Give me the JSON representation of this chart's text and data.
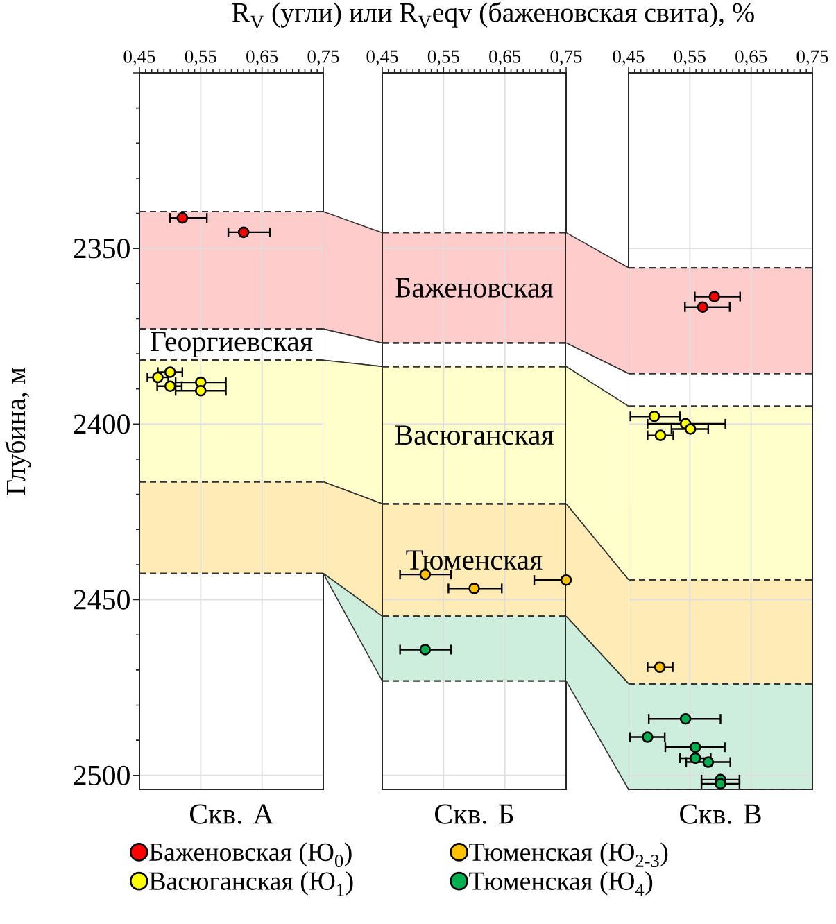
{
  "chart_data": [
    {
      "type": "scatter",
      "title": "R$_{V}$ (угли) или R$_{V}$eqv (баженовская свита), %",
      "xlabel": "Скв. А",
      "ylabel": "Глубина, м",
      "xlim": [
        0.45,
        0.75
      ],
      "xticks": [
        {
          "value": 0.45,
          "label": "0,45"
        },
        {
          "value": 0.55,
          "label": "0,55"
        },
        {
          "value": 0.65,
          "label": "0,65"
        },
        {
          "value": 0.75,
          "label": "0,75"
        }
      ],
      "ylim": [
        2504,
        2300
      ],
      "yticks": [
        {
          "value": 2300,
          "label": null
        },
        2350,
        2400,
        2450,
        2500
      ],
      "grid": true,
      "marker": "circle",
      "legend": "bottom",
      "bands": [
        {
          "axis": "y",
          "from": 2339.5,
          "to": 2372.9,
          "color": "#ffcccc"
        },
        {
          "axis": "y",
          "from": 2372.9,
          "to": 2381.8,
          "label": "Георгиевская",
          "color": "#ffffff"
        },
        {
          "axis": "y",
          "from": 2381.8,
          "to": 2416.4,
          "color": "#ffffcc"
        },
        {
          "axis": "y",
          "from": 2416.4,
          "to": 2442.5,
          "color": "#ffebb5"
        }
      ],
      "series": [
        {
          "name": "Баженовская (Ю$_{0}$)",
          "color": "#ff0000",
          "x": [
            0.52,
            0.62
          ],
          "values": [
            2341.3,
            2345.4
          ],
          "xerrors": [
            [
              0.5,
              0.56
            ],
            [
              0.595,
              0.663
            ]
          ]
        },
        {
          "name": "Васюганская (Ю$_{1}$)",
          "color": "#ffff00",
          "x": [
            0.5,
            0.48,
            0.55,
            0.5,
            0.55
          ],
          "values": [
            2385.2,
            2386.7,
            2388.1,
            2389.2,
            2390.5
          ],
          "xerrors": [
            [
              0.48,
              0.52
            ],
            [
              0.463,
              0.497
            ],
            [
              0.509,
              0.591
            ],
            [
              0.479,
              0.519
            ],
            [
              0.509,
              0.591
            ]
          ]
        }
      ]
    },
    {
      "type": "scatter",
      "xlabel": "Скв. Б",
      "xlim": [
        0.45,
        0.75
      ],
      "xticks": [
        {
          "value": 0.45,
          "label": "0,45"
        },
        {
          "value": 0.55,
          "label": "0,55"
        },
        {
          "value": 0.65,
          "label": "0,65"
        },
        {
          "value": 0.75,
          "label": "0,75"
        }
      ],
      "ylim": [
        2504,
        2300
      ],
      "yticks": [
        2350,
        2400,
        2450,
        2500
      ],
      "tick_labels": "x",
      "grid": true,
      "marker": "circle",
      "legend": "bottom",
      "bands": [
        {
          "axis": "y",
          "from": 2345.5,
          "to": 2376.9,
          "label": "Баженовская",
          "color": "#ffcccc"
        },
        {
          "axis": "y",
          "from": 2376.9,
          "to": 2383.6,
          "color": "#ffffff"
        },
        {
          "axis": "y",
          "from": 2383.6,
          "to": 2422.7,
          "label": "Васюганская",
          "color": "#ffffcc"
        },
        {
          "axis": "y",
          "from": 2422.7,
          "to": 2454.7,
          "label": "Тюменская",
          "color": "#ffebb5"
        },
        {
          "axis": "y",
          "from": 2454.7,
          "to": 2473.1,
          "color": "#cdeedc"
        }
      ],
      "series": [
        {
          "name": "Тюменская (Ю$_{2-3}$)",
          "color": "#ffc000",
          "x": [
            0.52,
            0.6,
            0.75
          ],
          "values": [
            2442.8,
            2446.8,
            2444.4
          ],
          "xerrors": [
            [
              0.479,
              0.562
            ],
            [
              0.558,
              0.645
            ],
            [
              0.698,
              0.75
            ]
          ]
        },
        {
          "name": "Тюменская (Ю$_{4}$)",
          "color": "#00b050",
          "x": [
            0.52
          ],
          "values": [
            2464.2
          ],
          "xerrors": [
            [
              0.479,
              0.562
            ]
          ]
        }
      ]
    },
    {
      "type": "scatter",
      "xlabel": "Скв. В",
      "xlim": [
        0.45,
        0.75
      ],
      "xticks": [
        {
          "value": 0.45,
          "label": "0,45"
        },
        {
          "value": 0.55,
          "label": "0,55"
        },
        {
          "value": 0.65,
          "label": "0,65"
        },
        {
          "value": 0.75,
          "label": "0,75"
        }
      ],
      "ylim": [
        2504,
        2300
      ],
      "yticks": [
        2350,
        2400,
        2450,
        2500
      ],
      "tick_labels": "x",
      "grid": true,
      "marker": "circle",
      "bands": [
        {
          "axis": "y",
          "from": 2355.5,
          "to": 2385.6,
          "color": "#ffcccc"
        },
        {
          "axis": "y",
          "from": 2385.6,
          "to": 2394.9,
          "color": "#ffffff"
        },
        {
          "axis": "y",
          "from": 2394.9,
          "to": 2444.3,
          "color": "#ffffcc"
        },
        {
          "axis": "y",
          "from": 2444.3,
          "to": 2473.9,
          "color": "#ffebb5"
        },
        {
          "axis": "y",
          "from": 2473.9,
          "to": 2504,
          "color": "#cdeedc"
        }
      ],
      "series": [
        {
          "color": "#ff0000",
          "x": [
            0.59,
            0.571
          ],
          "values": [
            2363.7,
            2366.7
          ],
          "xerrors": [
            [
              0.558,
              0.632
            ],
            [
              0.542,
              0.615
            ]
          ]
        },
        {
          "color": "#ffff00",
          "x": [
            0.492,
            0.543,
            0.551,
            0.502
          ],
          "values": [
            2397.8,
            2399.9,
            2401.4,
            2403.2
          ],
          "xerrors": [
            [
              0.453,
              0.534
            ],
            [
              0.481,
              0.608
            ],
            [
              0.52,
              0.58
            ],
            [
              0.481,
              0.523
            ]
          ]
        },
        {
          "color": "#ffc000",
          "x": [
            0.501
          ],
          "values": [
            2469.2
          ],
          "xerrors": [
            [
              0.481,
              0.522
            ]
          ]
        },
        {
          "color": "#00b050",
          "x": [
            0.543,
            0.481,
            0.559,
            0.559,
            0.58,
            0.6,
            0.6
          ],
          "values": [
            2483.9,
            2489.1,
            2492.0,
            2495.1,
            2496.2,
            2501.2,
            2502.4
          ],
          "xerrors": [
            [
              0.483,
              0.6
            ],
            [
              0.452,
              0.509
            ],
            [
              0.51,
              0.607
            ],
            [
              0.534,
              0.584
            ],
            [
              0.544,
              0.616
            ],
            [
              0.569,
              0.631
            ],
            [
              0.569,
              0.631
            ]
          ]
        }
      ]
    }
  ]
}
